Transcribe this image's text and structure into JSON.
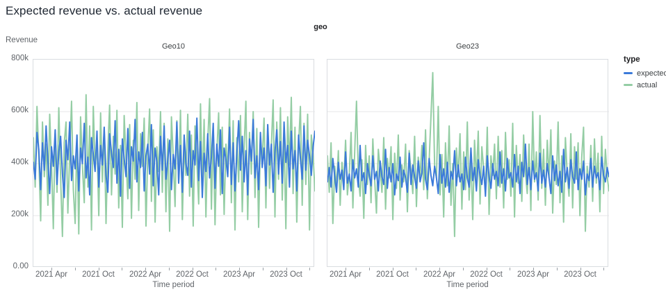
{
  "page": {
    "title": "Expected revenue vs. actual revenue"
  },
  "chart_data": {
    "type": "line",
    "title": "Expected revenue vs. actual revenue",
    "facet_field": "geo",
    "ylabel": "Revenue",
    "xlabel": "Time period",
    "ylim_k": [
      0,
      800
    ],
    "grid": true,
    "gridlines_k": [
      200,
      400,
      600
    ],
    "y_axis": {
      "ticks": [
        {
          "value_k": 800,
          "label": "800k"
        },
        {
          "value_k": 600,
          "label": "600k"
        },
        {
          "value_k": 400,
          "label": "400k"
        },
        {
          "value_k": 200,
          "label": "200k"
        },
        {
          "value_k": 0,
          "label": "0.00"
        }
      ]
    },
    "x_axis": {
      "label": "Time period",
      "tick_positions": [
        0.0667,
        0.15,
        0.2333,
        0.3167,
        0.4,
        0.4833,
        0.5667,
        0.65,
        0.7333,
        0.8167,
        0.9,
        0.9833
      ],
      "tick_labels": [
        "2021 Apr",
        "",
        "2021 Oct",
        "",
        "2022 Apr",
        "",
        "2022 Oct",
        "",
        "2023 Apr",
        "",
        "2023 Oct",
        ""
      ]
    },
    "legend": {
      "title": "type",
      "position": "right",
      "items": [
        {
          "label": "expected",
          "color": "#3b7ad9"
        },
        {
          "label": "actual",
          "color": "#94cda4"
        }
      ]
    },
    "colors": {
      "expected": "#3b7ad9",
      "actual": "#94cda4"
    },
    "x_domain": "weekly, Jan 2021 - Jan 2024",
    "facets": [
      {
        "title": "Geo10",
        "series": [
          {
            "name": "expected",
            "color": "#3b7ad9",
            "values_k": [
              405,
              340,
              520,
              455,
              300,
              480,
              375,
              545,
              410,
              285,
              465,
              390,
              530,
              320,
              445,
              505,
              360,
              270,
              490,
              415,
              560,
              335,
              430,
              380,
              510,
              295,
              460,
              400,
              555,
              345,
              425,
              280,
              500,
              435,
              370,
              525,
              310,
              470,
              395,
              540,
              355,
              290,
              515,
              440,
              385,
              565,
              325,
              455,
              275,
              495,
              420,
              350,
              535,
              305,
              465,
              410,
              570,
              330,
              445,
              385,
              520,
              295,
              430,
              475,
              360,
              550,
              315,
              460,
              405,
              280,
              505,
              375,
              545,
              340,
              415,
              490,
              300,
              435,
              380,
              560,
              325,
              470,
              290,
              510,
              400,
              355,
              525,
              310,
              450,
              395,
              575,
              335,
              485,
              270,
              440,
              370,
              515,
              345,
              425,
              555,
              305,
              475,
              390,
              530,
              285,
              460,
              415,
              350,
              540,
              320,
              480,
              295,
              435,
              565,
              375,
              505,
              330,
              450,
              280,
              495,
              410,
              570,
              345,
              430,
              300,
              520,
              385,
              460,
              315,
              550,
              395,
              475,
              290,
              445,
              530,
              360,
              485,
              325,
              560,
              405,
              470,
              310,
              525,
              380,
              450,
              295,
              510,
              420,
              340,
              545,
              375,
              490,
              430,
              355,
              465,
              525
            ]
          },
          {
            "name": "actual",
            "color": "#94cda4",
            "values_k": [
              500,
              310,
              620,
              430,
              180,
              560,
              350,
              475,
              240,
              590,
              400,
              150,
              530,
              290,
              615,
              345,
              120,
              480,
              560,
              210,
              435,
              640,
              300,
              170,
              510,
              130,
              580,
              395,
              250,
              665,
              310,
              545,
              145,
              620,
              385,
              480,
              200,
              595,
              330,
              540,
              170,
              450,
              625,
              280,
              505,
              360,
              605,
              230,
              470,
              155,
              585,
              415,
              265,
              550,
              190,
              490,
              340,
              635,
              220,
              515,
              390,
              575,
              160,
              445,
              610,
              255,
              530,
              175,
              465,
              370,
              600,
              290,
              555,
              215,
              495,
              140,
              580,
              425,
              235,
              565,
              325,
              605,
              185,
              470,
              355,
              590,
              275,
              510,
              160,
              545,
              405,
              245,
              630,
              310,
              570,
              195,
              485,
              650,
              225,
              520,
              165,
              445,
              595,
              280,
              540,
              205,
              475,
              375,
              610,
              250,
              565,
              145,
              500,
              330,
              585,
              215,
              455,
              640,
              185,
              520,
              360,
              600,
              270,
              535,
              155,
              490,
              415,
              575,
              230,
              550,
              305,
              465,
              645,
              195,
              560,
              340,
              615,
              260,
              505,
              150,
              580,
              395,
              655,
              285,
              540,
              175,
              470,
              620,
              240,
              555,
              320,
              590,
              145,
              510,
              430,
              295
            ]
          }
        ]
      },
      {
        "title": "Geo23",
        "series": [
          {
            "name": "expected",
            "color": "#3b7ad9",
            "values_k": [
              330,
              385,
              310,
              420,
              350,
              290,
              405,
              340,
              375,
              300,
              445,
              325,
              360,
              295,
              415,
              345,
              380,
              310,
              470,
              335,
              365,
              285,
              400,
              355,
              315,
              430,
              340,
              370,
              295,
              410,
              350,
              320,
              455,
              305,
              385,
              330,
              400,
              280,
              360,
              335,
              425,
              310,
              375,
              345,
              290,
              440,
              320,
              395,
              350,
              305,
              410,
              330,
              365,
              480,
              340,
              300,
              420,
              355,
              315,
              390,
              345,
              285,
              435,
              325,
              380,
              310,
              405,
              290,
              370,
              340,
              450,
              315,
              395,
              330,
              360,
              300,
              425,
              345,
              310,
              460,
              335,
              385,
              295,
              415,
              355,
              320,
              390,
              275,
              430,
              350,
              305,
              400,
              340,
              370,
              315,
              445,
              325,
              380,
              295,
              420,
              345,
              365,
              310,
              435,
              330,
              390,
              285,
              405,
              350,
              475,
              320,
              385,
              300,
              410,
              340,
              365,
              295,
              440,
              325,
              375,
              310,
              400,
              345,
              285,
              430,
              335,
              395,
              315,
              370,
              290,
              455,
              330,
              385,
              305,
              415,
              350,
              325,
              445,
              300,
              380,
              340,
              410,
              280,
              360,
              335,
              420,
              310,
              390,
              345,
              365,
              300,
              425,
              355,
              330,
              385,
              350
            ]
          },
          {
            "name": "actual",
            "color": "#94cda4",
            "values_k": [
              430,
              290,
              480,
              170,
              390,
              310,
              450,
              240,
              405,
              330,
              490,
              280,
              360,
              520,
              230,
              445,
              640,
              350,
              275,
              415,
              190,
              470,
              320,
              430,
              250,
              495,
              340,
              210,
              455,
              380,
              290,
              500,
              225,
              420,
              345,
              465,
              185,
              440,
              305,
              510,
              260,
              395,
              330,
              475,
              215,
              450,
              370,
              285,
              505,
              235,
              425,
              355,
              470,
              300,
              530,
              265,
              410,
              580,
              750,
              390,
              345,
              620,
              280,
              435,
              195,
              480,
              315,
              545,
              240,
              400,
              120,
              460,
              350,
              515,
              225,
              445,
              300,
              560,
              260,
              420,
              185,
              490,
              335,
              525,
              245,
              465,
              380,
              290,
              540,
              205,
              430,
              355,
              475,
              265,
              505,
              310,
              450,
              230,
              520,
              340,
              415,
              275,
              555,
              195,
              470,
              325,
              435,
              255,
              510,
              365,
              285,
              475,
              220,
              600,
              330,
              445,
              260,
              585,
              305,
              455,
              240,
              490,
              345,
              530,
              210,
              410,
              320,
              560,
              250,
              430,
              175,
              500,
              360,
              275,
              515,
              230,
              465,
              340,
              480,
              200,
              425,
              540,
              140,
              390,
              310,
              470,
              255,
              495,
              325,
              440,
              215,
              505,
              285,
              455,
              350,
              295
            ]
          }
        ]
      }
    ]
  }
}
